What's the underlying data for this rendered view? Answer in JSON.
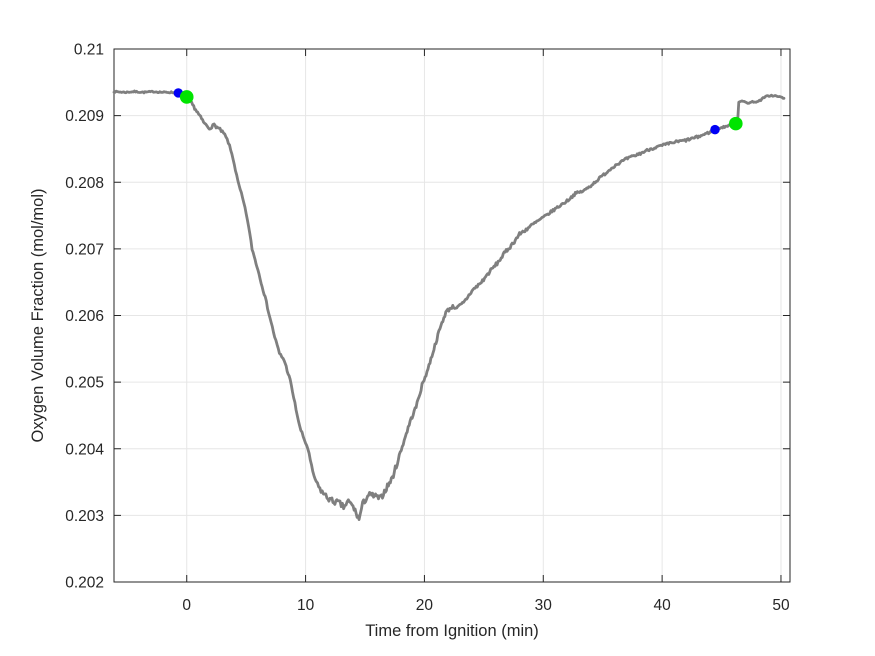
{
  "chart_data": {
    "type": "line",
    "title": "",
    "xlabel": "Time from Ignition (min)",
    "ylabel": "Oxygen Volume Fraction (mol/mol)",
    "xlim": [
      -6.12,
      50.76
    ],
    "ylim": [
      0.202,
      0.21
    ],
    "xticks": [
      0,
      10,
      20,
      30,
      40,
      50
    ],
    "xtick_labels": [
      "0",
      "10",
      "20",
      "30",
      "40",
      "50"
    ],
    "yticks": [
      0.202,
      0.203,
      0.204,
      0.205,
      0.206,
      0.207,
      0.208,
      0.209,
      0.21
    ],
    "ytick_labels": [
      "0.202",
      "0.203",
      "0.204",
      "0.205",
      "0.206",
      "0.207",
      "0.208",
      "0.209",
      "0.21"
    ],
    "grid": true,
    "legend": null,
    "colors": {
      "background": "#ffffff",
      "axis": "#262626",
      "grid": "#e6e6e6",
      "line": "#7f7f7f",
      "marker_blue": "#0000f5",
      "marker_green": "#00e400"
    },
    "series": [
      {
        "name": "oxygen-volume-fraction",
        "color": "#7f7f7f",
        "line_width": 2.8,
        "points": [
          [
            -6.12,
            0.20936
          ],
          [
            -5.2,
            0.20935
          ],
          [
            -4.4,
            0.20936
          ],
          [
            -3.6,
            0.20935
          ],
          [
            -2.8,
            0.20936
          ],
          [
            -2.0,
            0.20935
          ],
          [
            -1.3,
            0.20935
          ],
          [
            -0.71,
            0.20934
          ],
          [
            0.0,
            0.20928
          ],
          [
            0.5,
            0.20916
          ],
          [
            1.0,
            0.20902
          ],
          [
            1.5,
            0.20888
          ],
          [
            1.9,
            0.20881
          ],
          [
            2.3,
            0.20886
          ],
          [
            2.8,
            0.20879
          ],
          [
            3.2,
            0.20871
          ],
          [
            3.5,
            0.2086
          ],
          [
            3.9,
            0.20836
          ],
          [
            4.3,
            0.20801
          ],
          [
            4.7,
            0.20776
          ],
          [
            5.1,
            0.20745
          ],
          [
            5.5,
            0.207
          ],
          [
            6.0,
            0.20668
          ],
          [
            6.6,
            0.20627
          ],
          [
            7.0,
            0.20597
          ],
          [
            7.4,
            0.20568
          ],
          [
            7.8,
            0.20543
          ],
          [
            8.2,
            0.20533
          ],
          [
            8.7,
            0.20503
          ],
          [
            9.1,
            0.20468
          ],
          [
            9.5,
            0.20433
          ],
          [
            9.8,
            0.20418
          ],
          [
            10.2,
            0.204
          ],
          [
            10.6,
            0.20365
          ],
          [
            11.0,
            0.20345
          ],
          [
            11.4,
            0.20335
          ],
          [
            11.8,
            0.20327
          ],
          [
            12.3,
            0.20321
          ],
          [
            12.8,
            0.20319
          ],
          [
            13.2,
            0.20312
          ],
          [
            13.6,
            0.20321
          ],
          [
            14.0,
            0.20313
          ],
          [
            14.5,
            0.20294
          ],
          [
            14.8,
            0.20317
          ],
          [
            15.3,
            0.20331
          ],
          [
            15.8,
            0.20329
          ],
          [
            16.3,
            0.20325
          ],
          [
            16.8,
            0.20341
          ],
          [
            17.3,
            0.20356
          ],
          [
            17.8,
            0.20384
          ],
          [
            18.3,
            0.20413
          ],
          [
            18.8,
            0.20441
          ],
          [
            19.3,
            0.20463
          ],
          [
            19.8,
            0.20495
          ],
          [
            20.3,
            0.2052
          ],
          [
            20.8,
            0.2055
          ],
          [
            21.3,
            0.2058
          ],
          [
            21.8,
            0.20605
          ],
          [
            22.3,
            0.20613
          ],
          [
            22.8,
            0.20612
          ],
          [
            23.3,
            0.20619
          ],
          [
            24.0,
            0.20637
          ],
          [
            24.8,
            0.2065
          ],
          [
            25.5,
            0.20666
          ],
          [
            26.2,
            0.2068
          ],
          [
            26.8,
            0.20695
          ],
          [
            27.3,
            0.20705
          ],
          [
            28.0,
            0.20722
          ],
          [
            29.0,
            0.20735
          ],
          [
            30.0,
            0.20747
          ],
          [
            31.0,
            0.2076
          ],
          [
            32.0,
            0.20772
          ],
          [
            32.7,
            0.20783
          ],
          [
            33.4,
            0.20787
          ],
          [
            34.0,
            0.20795
          ],
          [
            35.0,
            0.2081
          ],
          [
            36.0,
            0.20825
          ],
          [
            37.0,
            0.20835
          ],
          [
            38.0,
            0.20842
          ],
          [
            39.0,
            0.2085
          ],
          [
            40.0,
            0.20855
          ],
          [
            41.0,
            0.2086
          ],
          [
            42.0,
            0.20863
          ],
          [
            43.0,
            0.20868
          ],
          [
            44.0,
            0.20875
          ],
          [
            44.45,
            0.20879
          ],
          [
            45.0,
            0.20882
          ],
          [
            45.6,
            0.20885
          ],
          [
            46.2,
            0.20888
          ],
          [
            46.35,
            0.20891
          ],
          [
            46.45,
            0.20921
          ],
          [
            46.9,
            0.20921
          ],
          [
            47.3,
            0.20919
          ],
          [
            47.7,
            0.20921
          ],
          [
            48.1,
            0.20921
          ],
          [
            48.5,
            0.20926
          ],
          [
            48.9,
            0.2093
          ],
          [
            49.3,
            0.2093
          ],
          [
            49.7,
            0.20929
          ],
          [
            50.1,
            0.20927
          ],
          [
            50.25,
            0.20926
          ]
        ]
      }
    ],
    "markers": [
      {
        "name": "blue-marker-start",
        "x": -0.71,
        "y": 0.20934,
        "color": "#0000f5",
        "radius": 4.7
      },
      {
        "name": "green-marker-start",
        "x": 0.0,
        "y": 0.20928,
        "color": "#00e400",
        "radius": 6.8
      },
      {
        "name": "blue-marker-end",
        "x": 44.45,
        "y": 0.20879,
        "color": "#0000f5",
        "radius": 4.7
      },
      {
        "name": "green-marker-end",
        "x": 46.2,
        "y": 0.20888,
        "color": "#00e400",
        "radius": 6.8
      }
    ],
    "noise": {
      "seed": 7,
      "dt": 0.09,
      "amplitude_regions": [
        [
          -6.2,
          -0.6,
          1e-05
        ],
        [
          -0.6,
          11.0,
          2.2e-05
        ],
        [
          11.0,
          18.0,
          4.5e-05
        ],
        [
          18.0,
          30.0,
          2.8e-05
        ],
        [
          30.0,
          44.0,
          2e-05
        ],
        [
          44.0,
          50.4,
          1.2e-05
        ]
      ]
    }
  }
}
